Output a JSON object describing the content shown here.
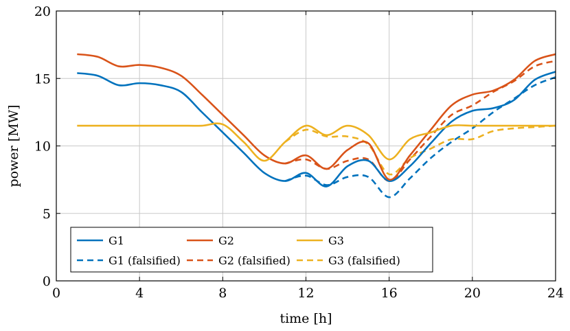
{
  "chart_data": {
    "type": "line",
    "title": "",
    "xlabel": "time [h]",
    "ylabel": "power [MW]",
    "xlim": [
      0,
      24
    ],
    "ylim": [
      0,
      20
    ],
    "xticks": [
      0,
      4,
      8,
      12,
      16,
      20,
      24
    ],
    "yticks": [
      0,
      5,
      10,
      15,
      20
    ],
    "grid": true,
    "legend_position": "bottom-left",
    "x": [
      1,
      2,
      3,
      4,
      5,
      6,
      7,
      8,
      9,
      10,
      11,
      12,
      13,
      14,
      15,
      16,
      17,
      18,
      19,
      20,
      21,
      22,
      23,
      24
    ],
    "series": [
      {
        "name": "G1",
        "style": "solid",
        "color": "#0072BD",
        "values": [
          15.4,
          15.2,
          14.5,
          14.65,
          14.5,
          14.0,
          12.5,
          11.0,
          9.5,
          8.0,
          7.4,
          8.0,
          7.0,
          8.5,
          8.9,
          7.4,
          8.5,
          10.2,
          11.8,
          12.6,
          12.8,
          13.4,
          14.9,
          15.5
        ]
      },
      {
        "name": "G2",
        "style": "solid",
        "color": "#D95319",
        "values": [
          16.8,
          16.6,
          15.9,
          16.0,
          15.8,
          15.2,
          13.8,
          12.3,
          10.8,
          9.3,
          8.7,
          9.3,
          8.3,
          9.7,
          10.2,
          7.5,
          9.3,
          11.2,
          13.0,
          13.8,
          14.1,
          14.9,
          16.3,
          16.8
        ]
      },
      {
        "name": "G3",
        "style": "solid",
        "color": "#EDB120",
        "values": [
          11.5,
          11.5,
          11.5,
          11.5,
          11.5,
          11.5,
          11.5,
          11.6,
          10.3,
          8.9,
          10.3,
          11.5,
          10.8,
          11.5,
          10.8,
          9.0,
          10.5,
          11.0,
          11.5,
          11.5,
          11.5,
          11.5,
          11.5,
          11.5
        ]
      },
      {
        "name": "G1 (falsified)",
        "style": "dashed",
        "color": "#0072BD",
        "values": [
          null,
          null,
          null,
          null,
          null,
          null,
          null,
          null,
          null,
          null,
          7.4,
          7.8,
          7.1,
          7.7,
          7.7,
          6.2,
          7.6,
          9.1,
          10.3,
          11.3,
          12.5,
          13.5,
          14.5,
          15.1
        ]
      },
      {
        "name": "G2 (falsified)",
        "style": "dashed",
        "color": "#D95319",
        "values": [
          null,
          null,
          null,
          null,
          null,
          null,
          null,
          null,
          null,
          null,
          8.7,
          9.0,
          8.3,
          8.9,
          9.0,
          7.4,
          9.0,
          10.7,
          12.3,
          13.0,
          14.0,
          14.8,
          15.9,
          16.3
        ]
      },
      {
        "name": "G3 (falsified)",
        "style": "dashed",
        "color": "#EDB120",
        "values": [
          null,
          null,
          null,
          null,
          null,
          null,
          null,
          null,
          null,
          null,
          10.3,
          11.2,
          10.7,
          10.7,
          10.1,
          7.9,
          9.1,
          9.8,
          10.5,
          10.5,
          11.1,
          11.3,
          11.4,
          11.5
        ]
      }
    ]
  }
}
